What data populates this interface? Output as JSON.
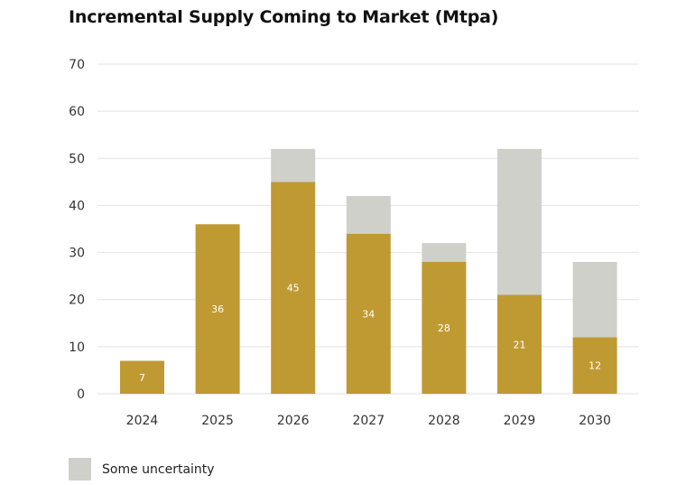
{
  "chart_data": {
    "type": "bar",
    "stacked": true,
    "title": "Incremental Supply Coming to Market (Mtpa)",
    "categories": [
      "2024",
      "2025",
      "2026",
      "2027",
      "2028",
      "2029",
      "2030"
    ],
    "series": [
      {
        "values": [
          7,
          36,
          45,
          34,
          28,
          21,
          12
        ],
        "color": "#bf9a33"
      },
      {
        "name": "Some uncertainty",
        "values": [
          0,
          0,
          7,
          8,
          4,
          31,
          16
        ],
        "color": "#cfd0ca"
      }
    ],
    "data_labels": [
      "7",
      "36",
      "45",
      "34",
      "28",
      "21",
      "12"
    ],
    "ylim": [
      0,
      70
    ],
    "yticks": [
      0,
      10,
      20,
      30,
      40,
      50,
      60,
      70
    ],
    "xlabel": "",
    "ylabel": "",
    "grid": true,
    "legend": "bottom-left"
  }
}
